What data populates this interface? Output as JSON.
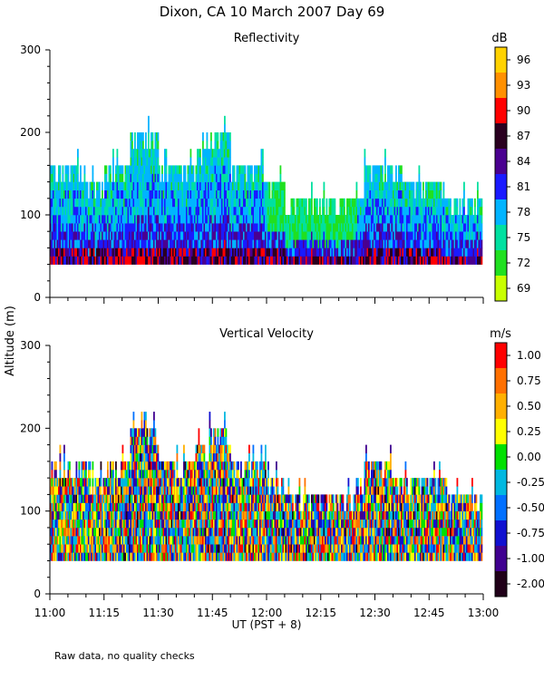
{
  "title": "Dixon, CA 10 March 2007   Day  69",
  "ylabel": "Altitude  (m)",
  "xlabel": "UT   (PST + 8)",
  "footnote": "Raw data, no quality checks",
  "x_ticks": [
    "11:00",
    "11:15",
    "11:30",
    "11:45",
    "12:00",
    "12:15",
    "12:30",
    "12:45",
    "13:00"
  ],
  "y_ticks": [
    "0",
    "100",
    "200",
    "300"
  ],
  "chart_data": [
    {
      "type": "heatmap",
      "title": "Reflectivity",
      "unit": "dB",
      "x_range": [
        "11:00",
        "13:00"
      ],
      "y_range": [
        0,
        300
      ],
      "colorbar_labels": [
        "96",
        "93",
        "90",
        "87",
        "84",
        "81",
        "78",
        "75",
        "72",
        "69"
      ],
      "colorbar_colors": [
        "#ffd200",
        "#ff9000",
        "#ff0000",
        "#2a0020",
        "#4a0090",
        "#1a1aff",
        "#00b4ff",
        "#00e0a0",
        "#20e020",
        "#c8ff00"
      ],
      "echo_base_m": 40,
      "echo_top_profile": [
        {
          "t": "11:00",
          "top_m": 160
        },
        {
          "t": "11:10",
          "top_m": 140
        },
        {
          "t": "11:15",
          "top_m": 160
        },
        {
          "t": "11:22",
          "top_m": 195
        },
        {
          "t": "11:30",
          "top_m": 160
        },
        {
          "t": "11:40",
          "top_m": 175
        },
        {
          "t": "11:44",
          "top_m": 200
        },
        {
          "t": "11:50",
          "top_m": 160
        },
        {
          "t": "12:00",
          "top_m": 140
        },
        {
          "t": "12:05",
          "top_m": 120
        },
        {
          "t": "12:25",
          "top_m": 120
        },
        {
          "t": "12:27",
          "top_m": 160
        },
        {
          "t": "12:35",
          "top_m": 140
        },
        {
          "t": "12:50",
          "top_m": 120
        },
        {
          "t": "13:00",
          "top_m": 120
        }
      ]
    },
    {
      "type": "heatmap",
      "title": "Vertical Velocity",
      "unit": "m/s",
      "x_range": [
        "11:00",
        "13:00"
      ],
      "y_range": [
        0,
        300
      ],
      "colorbar_labels": [
        "1.00",
        "0.75",
        "0.50",
        "0.25",
        "0.00",
        "-0.25",
        "-0.50",
        "-0.75",
        "-1.00",
        "-2.00"
      ],
      "colorbar_colors": [
        "#ff0000",
        "#ff7000",
        "#ffb000",
        "#ffff00",
        "#00e000",
        "#00b8e0",
        "#0070ff",
        "#1010d0",
        "#400090",
        "#200018"
      ],
      "echo_base_m": 40,
      "echo_top_profile": [
        {
          "t": "11:00",
          "top_m": 160
        },
        {
          "t": "11:10",
          "top_m": 140
        },
        {
          "t": "11:15",
          "top_m": 160
        },
        {
          "t": "11:22",
          "top_m": 195
        },
        {
          "t": "11:30",
          "top_m": 160
        },
        {
          "t": "11:40",
          "top_m": 175
        },
        {
          "t": "11:44",
          "top_m": 200
        },
        {
          "t": "11:50",
          "top_m": 160
        },
        {
          "t": "12:00",
          "top_m": 140
        },
        {
          "t": "12:05",
          "top_m": 120
        },
        {
          "t": "12:25",
          "top_m": 120
        },
        {
          "t": "12:27",
          "top_m": 160
        },
        {
          "t": "12:35",
          "top_m": 140
        },
        {
          "t": "12:50",
          "top_m": 120
        },
        {
          "t": "13:00",
          "top_m": 120
        }
      ]
    }
  ]
}
